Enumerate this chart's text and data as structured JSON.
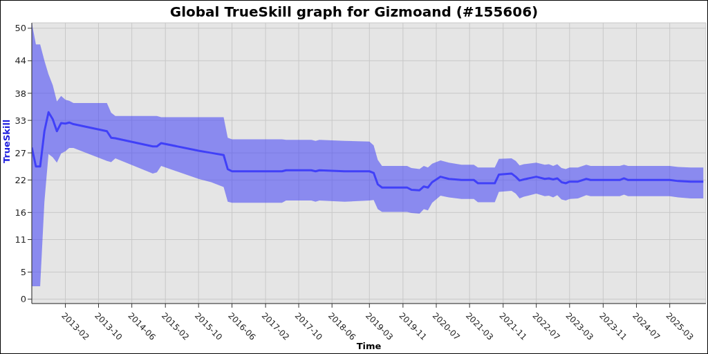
{
  "chart_data": {
    "type": "line",
    "title": "Global TrueSkill graph for Gizmoand (#155606)",
    "xlabel": "Time",
    "ylabel": "TrueSkill",
    "x": [
      "2012-06",
      "2012-07",
      "2012-08",
      "2012-09",
      "2012-10",
      "2012-11",
      "2012-12",
      "2013-01",
      "2013-02",
      "2013-03",
      "2013-04",
      "2013-12",
      "2014-01",
      "2014-02",
      "2014-11",
      "2014-12",
      "2015-01",
      "2015-10",
      "2016-01",
      "2016-04",
      "2016-05",
      "2016-06",
      "2017-06",
      "2017-07",
      "2018-01",
      "2018-02",
      "2018-03",
      "2018-09",
      "2019-03",
      "2019-04",
      "2019-05",
      "2019-06",
      "2019-12",
      "2020-01",
      "2020-03",
      "2020-04",
      "2020-05",
      "2020-06",
      "2020-08",
      "2020-10",
      "2021-01",
      "2021-04",
      "2021-05",
      "2021-09",
      "2021-10",
      "2022-01",
      "2022-02",
      "2022-03",
      "2022-04",
      "2022-07",
      "2022-09",
      "2022-10",
      "2022-11",
      "2022-12",
      "2023-01",
      "2023-02",
      "2023-03",
      "2023-05",
      "2023-07",
      "2023-08",
      "2024-03",
      "2024-04",
      "2024-05",
      "2025-03",
      "2025-05",
      "2025-08",
      "2025-11"
    ],
    "series": [
      {
        "color": "#4040f8",
        "values": [
          28,
          24.5,
          24.5,
          31,
          34.5,
          33.2,
          31,
          32.5,
          32.4,
          32.6,
          32.3,
          31,
          29.8,
          29.7,
          28.2,
          28.2,
          28.8,
          27.4,
          27,
          26.6,
          24,
          23.6,
          23.6,
          23.8,
          23.8,
          23.6,
          23.8,
          23.6,
          23.6,
          23.3,
          21.2,
          20.6,
          20.6,
          20.2,
          20.1,
          20.8,
          20.6,
          21.6,
          22.6,
          22.2,
          22,
          22,
          21.4,
          21.4,
          23,
          23.2,
          22.6,
          21.9,
          22.1,
          22.6,
          22.2,
          22.3,
          22.1,
          22.3,
          21.6,
          21.4,
          21.7,
          21.7,
          22.2,
          22,
          22,
          22.3,
          22,
          22,
          21.8,
          21.7,
          21.7
        ],
        "lower": [
          2.4,
          2.4,
          2.4,
          18,
          26.8,
          26.2,
          25.2,
          26.9,
          27.3,
          27.9,
          27.9,
          25.5,
          25.3,
          26,
          23.2,
          23.4,
          24.6,
          22.2,
          21.6,
          20.7,
          18,
          17.8,
          17.8,
          18.2,
          18.2,
          18,
          18.2,
          18,
          18.2,
          18.3,
          16.6,
          16.1,
          16.1,
          15.9,
          15.8,
          16.6,
          16.4,
          17.8,
          19.1,
          18.8,
          18.5,
          18.5,
          17.9,
          17.9,
          19.8,
          20,
          19.5,
          18.6,
          18.9,
          19.5,
          19,
          19.1,
          18.8,
          19.2,
          18.4,
          18.2,
          18.5,
          18.6,
          19.2,
          19,
          19,
          19.3,
          19,
          19,
          18.8,
          18.6,
          18.6
        ],
        "upper": [
          51,
          47,
          47,
          44,
          41.5,
          39.5,
          36.5,
          37.5,
          36.8,
          36.6,
          36.2,
          36.2,
          34.4,
          33.8,
          33.8,
          33.8,
          33.6,
          33.6,
          33.6,
          33.6,
          29.8,
          29.5,
          29.5,
          29.4,
          29.4,
          29.2,
          29.4,
          29.2,
          29.1,
          28.4,
          25.7,
          24.6,
          24.6,
          24.2,
          24,
          24.6,
          24.3,
          25,
          25.6,
          25.2,
          24.8,
          24.8,
          24.3,
          24.3,
          25.9,
          26,
          25.5,
          24.7,
          24.9,
          25.2,
          24.8,
          24.9,
          24.6,
          24.9,
          24.2,
          24,
          24.3,
          24.3,
          24.8,
          24.6,
          24.6,
          24.8,
          24.6,
          24.6,
          24.4,
          24.3,
          24.3
        ]
      }
    ],
    "xlim": [
      "2012-06-01",
      "2025-11-20"
    ],
    "xticks": [
      "2013-02",
      "2013-10",
      "2014-06",
      "2015-02",
      "2015-10",
      "2016-06",
      "2017-02",
      "2017-10",
      "2018-06",
      "2019-03",
      "2019-11",
      "2020-07",
      "2021-03",
      "2021-11",
      "2022-07",
      "2023-03",
      "2023-11",
      "2024-07",
      "2025-03"
    ],
    "ylim": [
      -0.8,
      51
    ],
    "yticks": [
      0,
      5,
      11,
      16,
      22,
      27,
      33,
      38,
      44,
      50
    ],
    "grid": true,
    "legend": false,
    "marker": "none",
    "line_style": "solid"
  }
}
